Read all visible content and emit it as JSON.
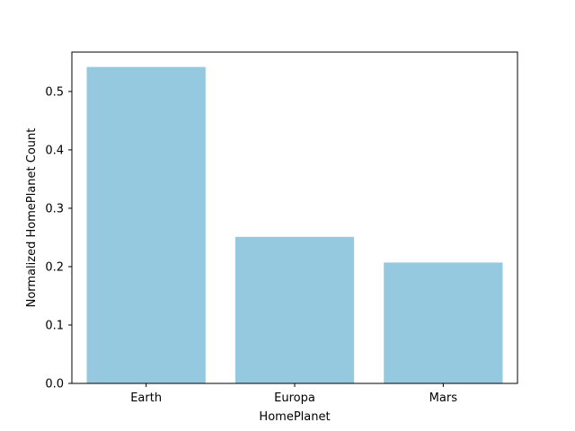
{
  "chart_data": {
    "type": "bar",
    "title": "",
    "xlabel": "HomePlanet",
    "ylabel": "Normalized HomePlanet Count",
    "categories": [
      "Earth",
      "Europa",
      "Mars"
    ],
    "values": [
      0.542,
      0.251,
      0.207
    ],
    "ylim": [
      0,
      0.5675
    ],
    "yticks": [
      0.0,
      0.1,
      0.2,
      0.3,
      0.4,
      0.5
    ],
    "ytick_labels": [
      "0.0",
      "0.1",
      "0.2",
      "0.3",
      "0.4",
      "0.5"
    ],
    "bar_color": "#94C9DF",
    "grid": false,
    "legend": "none"
  }
}
